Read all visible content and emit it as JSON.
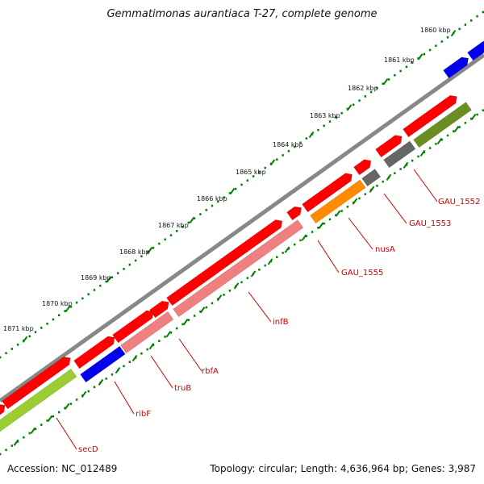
{
  "title": "Gemmatimonas aurantiaca T-27, complete genome",
  "accession": "Accession: NC_012489",
  "summary": "Topology: circular; Length: 4,636,964 bp; Genes: 3,987",
  "colors": {
    "backbone": "#888888",
    "ruler": "#008000",
    "label": "#cc0000",
    "cds_red": "#ff0000",
    "cds_blue": "#0000ee",
    "pink": "#f08080",
    "orange": "#ff8c00",
    "dark_gray": "#666666",
    "olive": "#6b8e23",
    "lime": "#9acd32"
  },
  "ruler_labels": [
    "1860 kbp",
    "1861 kbp",
    "1862 kbp",
    "1863 kbp",
    "1864 kbp",
    "1865 kbp",
    "1866 kbp",
    "1867 kbp",
    "1868 kbp",
    "1869 kbp",
    "1870 kbp",
    "1871 kbp"
  ],
  "gene_labels": [
    "GAU_1552",
    "GAU_1553",
    "nusA",
    "GAU_1555",
    "infB",
    "rbfA",
    "truB",
    "ribF",
    "secD"
  ]
}
